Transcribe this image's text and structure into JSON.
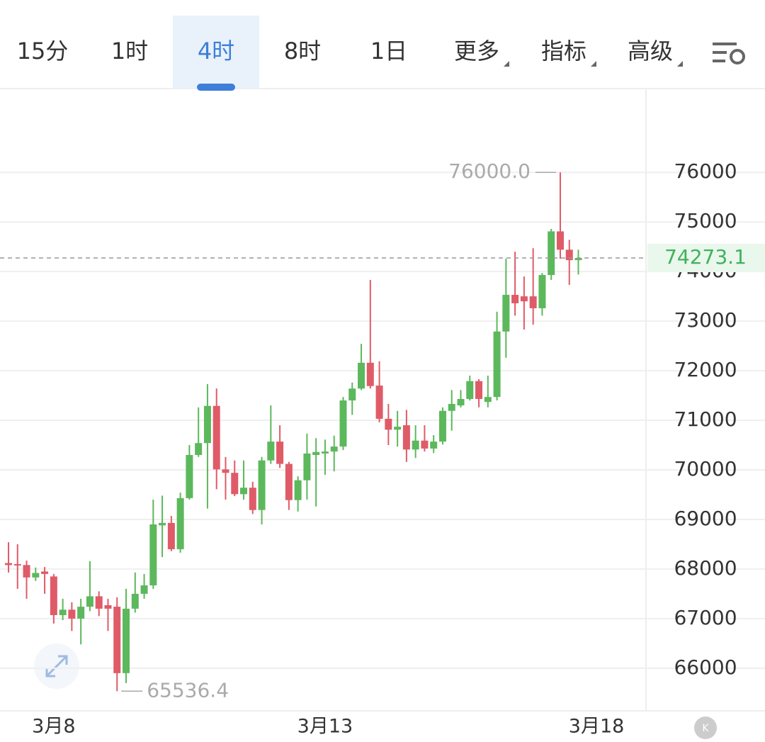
{
  "tabs": [
    "15分",
    "1时",
    "4时",
    "8时",
    "1日",
    "更多",
    "指标",
    "高级"
  ],
  "active_tab": 2,
  "chart_data": {
    "type": "candlestick",
    "categories": [
      null,
      null,
      null,
      null,
      null,
      "3月8",
      null,
      null,
      null,
      null,
      null,
      null,
      null,
      null,
      null,
      null,
      null,
      null,
      null,
      null,
      null,
      null,
      null,
      null,
      null,
      null,
      null,
      null,
      null,
      null,
      null,
      null,
      null,
      null,
      null,
      "3月13",
      null,
      null,
      null,
      null,
      null,
      null,
      null,
      null,
      null,
      null,
      null,
      null,
      null,
      null,
      null,
      null,
      null,
      null,
      null,
      null,
      null,
      null,
      null,
      null,
      null,
      null,
      null,
      null,
      null,
      "3月18"
    ],
    "open": [
      68120,
      68100,
      68080,
      67830,
      67950,
      67850,
      67070,
      67180,
      67000,
      67240,
      67450,
      67270,
      67240,
      65900,
      67200,
      67500,
      67670,
      68880,
      68930,
      68400,
      69430,
      70300,
      70540,
      71290,
      70010,
      69940,
      69510,
      69640,
      69190,
      70190,
      70570,
      70120,
      69390,
      69790,
      70300,
      70330,
      70370,
      70470,
      71400,
      71640,
      72160,
      71700,
      71030,
      70810,
      70900,
      70410,
      70590,
      70430,
      70570,
      71190,
      71300,
      71430,
      71790,
      71370,
      71470,
      72790,
      73530,
      73500,
      73500,
      73260,
      73930,
      74810,
      74440,
      74230,
      null,
      null
    ],
    "high": [
      68540,
      68500,
      68170,
      68030,
      68040,
      67900,
      67400,
      67330,
      67400,
      68160,
      67550,
      67400,
      67430,
      67600,
      67930,
      67900,
      69400,
      69480,
      69070,
      69540,
      70500,
      71260,
      71730,
      71640,
      70260,
      70190,
      70190,
      69760,
      70260,
      71300,
      70900,
      70160,
      69870,
      70730,
      70640,
      70610,
      70690,
      71470,
      71760,
      72540,
      73830,
      72190,
      71330,
      71190,
      71210,
      70900,
      70900,
      70700,
      71260,
      71610,
      71610,
      71900,
      71830,
      71900,
      73190,
      74260,
      74400,
      73900,
      74470,
      73970,
      74860,
      76000,
      74640,
      74440,
      null,
      null
    ],
    "low": [
      67930,
      67600,
      67400,
      67760,
      67500,
      66900,
      66970,
      66750,
      66480,
      67150,
      67050,
      66750,
      65536.4,
      65700,
      67120,
      67400,
      67600,
      68240,
      68360,
      68330,
      69400,
      70260,
      69220,
      69610,
      69400,
      69470,
      69400,
      69110,
      68900,
      70120,
      70040,
      69190,
      69160,
      69400,
      69260,
      69900,
      69970,
      70400,
      71110,
      71610,
      71640,
      70960,
      70500,
      70470,
      70160,
      70240,
      70370,
      70340,
      70510,
      70790,
      71260,
      71400,
      71260,
      71260,
      71400,
      72260,
      73110,
      72830,
      72930,
      73110,
      73830,
      74260,
      73730,
      73940,
      null,
      null
    ],
    "close": [
      68080,
      68090,
      67830,
      67920,
      67900,
      67070,
      67180,
      67000,
      67240,
      67450,
      67200,
      67200,
      65900,
      67200,
      67500,
      67670,
      68900,
      68930,
      68400,
      69430,
      70300,
      70540,
      71290,
      70010,
      69940,
      69510,
      69640,
      69190,
      70190,
      70570,
      70120,
      69390,
      69790,
      70330,
      70360,
      70370,
      70470,
      71400,
      71640,
      72160,
      71690,
      71030,
      70810,
      70870,
      70410,
      70590,
      70430,
      70570,
      71190,
      71330,
      71430,
      71790,
      71430,
      71470,
      72790,
      73530,
      73360,
      73400,
      73260,
      73930,
      74810,
      74440,
      74230,
      74273.1,
      null,
      null
    ],
    "up_color": "#5cb85c",
    "down_color": "#df5b68",
    "ylim": [
      65140,
      77690
    ],
    "yticks": [
      66000,
      67000,
      68000,
      69000,
      70000,
      71000,
      72000,
      73000,
      74000,
      75000,
      76000
    ],
    "grid": true,
    "last_price": 74273.1,
    "annotations": [
      {
        "value": 76000,
        "label": "76000.0"
      },
      {
        "value": 65536.4,
        "label": "65536.4"
      }
    ]
  }
}
